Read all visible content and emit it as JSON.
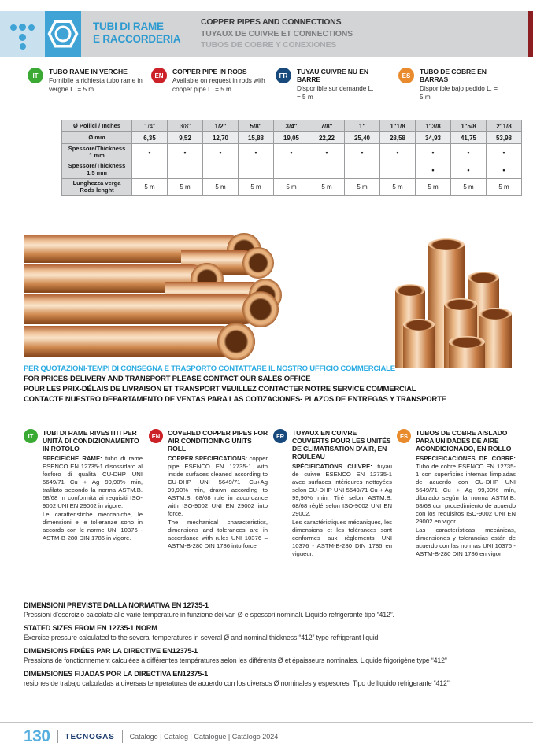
{
  "header": {
    "title_line1": "TUBI DI RAME",
    "title_line2": "E RACCORDERIA",
    "subtitle_en": "COPPER PIPES AND CONNECTIONS",
    "subtitle_fr": "TUYAUX DE CUIVRE ET CONNECTIONS",
    "subtitle_es": "TUBOS DE COBRE Y CONEXIONES",
    "accent_blue": "#3fa3d6",
    "section_tab_color": "#8c1d20"
  },
  "intro_notes": [
    {
      "lang": "IT",
      "color": "#3aaa35",
      "title": "TUBO RAME IN VERGHE",
      "text": "Fornibile a richiesta tubo rame in verghe L. = 5 m"
    },
    {
      "lang": "EN",
      "color": "#cc2128",
      "title": "COPPER PIPE IN RODS",
      "text": "Available on request in rods with copper pipe L. = 5 m"
    },
    {
      "lang": "FR",
      "color": "#17497d",
      "title": "TUYAU CUIVRE NU EN BARRE",
      "text": "Disponible sur demande L. = 5 m"
    },
    {
      "lang": "ES",
      "color": "#e98b2d",
      "title": "TUBO DE COBRE EN BARRAS",
      "text": "Disponible bajo pedido L. = 5 m"
    }
  ],
  "size_table": {
    "rows": [
      {
        "label": "Ø Pollici / Inches",
        "label2": "",
        "values": [
          "1/4\"",
          "3/8\"",
          "1/2\"",
          "5/8\"",
          "3/4\"",
          "7/8\"",
          "1\"",
          "1\"1/8",
          "1\"3/8",
          "1\"5/8",
          "2\"1/8"
        ]
      },
      {
        "label": "Ø mm",
        "label2": "",
        "values": [
          "6,35",
          "9,52",
          "12,70",
          "15,88",
          "19,05",
          "22,22",
          "25,40",
          "28,58",
          "34,93",
          "41,75",
          "53,98"
        ]
      },
      {
        "label": "Spessore/Thickness",
        "label2": "1 mm",
        "values": [
          "•",
          "•",
          "•",
          "•",
          "•",
          "•",
          "•",
          "•",
          "•",
          "•",
          "•"
        ]
      },
      {
        "label": "Spessore/Thickness",
        "label2": "1,5 mm",
        "values": [
          "",
          "",
          "",
          "",
          "",
          "",
          "",
          "",
          "•",
          "•",
          "•"
        ]
      },
      {
        "label": "Lunghezza verga",
        "label2": "Rods lenght",
        "values": [
          "5 m",
          "5 m",
          "5 m",
          "5 m",
          "5 m",
          "5 m",
          "5 m",
          "5 m",
          "5 m",
          "5 m",
          "5 m"
        ]
      }
    ]
  },
  "contact_lines": [
    "PER QUOTAZIONI-TEMPI DI CONSEGNA E TRASPORTO CONTATTARE IL NOSTRO UFFICIO COMMERCIALE",
    "FOR PRICES-DELIVERY AND TRANSPORT PLEASE CONTACT OUR SALES OFFICE",
    "POUR LES PRIX-DÉLAIS DE LIVRAISON ET TRANSPORT VEUILLEZ CONTACTER NOTRE SERVICE COMMERCIAL",
    "CONTACTE NUESTRO DEPARTAMENTO DE VENTAS PARA LAS COTIZACIONES- PLAZOS DE ENTREGAS Y TRANSPORTE"
  ],
  "spec_columns": [
    {
      "lang": "IT",
      "title": "TUBI DI RAME RIVESTITI PER UNITÀ DI CONDIZIONAMENTO IN ROTOLO",
      "lead": "SPECIFICHE RAME:",
      "body": "tubo di rame ESENCO EN 12735-1 disossidato al fosforo di qualità CU-DHP UNI 5649/71 Cu + Ag 99,90% min, trafilato secondo la norma ASTM.B. 68/68 in conformità ai requisiti ISO-9002 UNI EN 29002 in vigore.",
      "body2": "Le caratteristiche meccaniche, le dimensioni e le tolleranze sono in accordo con le norme UNI 10376 - ASTM-B-280 DIN 1786 in vigore."
    },
    {
      "lang": "EN",
      "title": "COVERED COPPER PIPES FOR AIR CONDITIONING UNITS ROLL",
      "lead": "COPPER SPECIFICATIONS:",
      "body": "copper pipe ESENCO EN 12735-1 with inside surfaces cleaned according to CU-DHP UNI 5649/71 Cu+Ag 99,90% min, drawn according to ASTM.B. 68/68 rule in accordance with ISO-9002 UNI EN 29002 into force.",
      "body2": "The mechanical characteristics, dimensions and tolerances are in accordance with rules UNI 10376 – ASTM-B-280 DIN 1786 into force"
    },
    {
      "lang": "FR",
      "title": "TUYAUX EN CUIVRE COUVERTS POUR LES UNITÉS DE CLIMATISATION D’AIR, EN ROULEAU",
      "lead": "SPÉCIFICATIONS CUIVRE:",
      "body": "tuyau de cuivre ESENCO EN 12735-1 avec surfaces intérieures nettoyées selon CU-DHP UNI 5649/71 Cu + Ag 99,90% min, Tiré selon ASTM.B. 68/68 réglé selon ISO-9002 UNI EN 29002.",
      "body2": "Les caractéristiques mécaniques, les dimensions et les tolérances sont conformes aux règlements UNI 10376 - ASTM-B-280 DIN 1786 en vigueur."
    },
    {
      "lang": "ES",
      "title": "TUBOS DE COBRE AISLADO PARA UNIDADES DE AIRE ACONDICIONADO, EN ROLLO",
      "lead": "ESPECIFICACIONES DE COBRE:",
      "body": "Tubo de cobre ESENCO EN 12735-1 con superficies internas limpiadas de acuerdo con CU-DHP UNI 5649/71 Cu + Ag 99,90% mín, dibujado según la norma ASTM.B. 68/68 con procedimiento de acuerdo con los requisitos ISO-9002 UNI EN 29002 en vigor.",
      "body2": "Las características mecánicas, dimensiones y tolerancias están de acuerdo con las normas UNI 10376 - ASTM-B-280 DIN 1786 en vigor"
    }
  ],
  "norm_notes": [
    {
      "title": "DIMENSIONI PREVISTE DALLA NORMATIVA EN 12735-1",
      "text": "Pressioni d’esercizio calcolate alle varie temperature in funzione dei vari Ø e spessori nominali. Liquido refrigerante tipo “412”."
    },
    {
      "title": "STATED SIZES FROM EN 12735-1 NORM",
      "text": "Exercise pressure calculated to the several temperatures in several Ø and nominal thickness “412” type refrigerant liquid"
    },
    {
      "title": "DIMENSIONS FIXÉES PAR LA DIRECTIVE EN12375-1",
      "text": "Pressions de fonctionnement calculées à différentes températures selon les différents Ø et épaisseurs nominales. Liquide frigorigène type “412”"
    },
    {
      "title": "DIMENSIONES FIJADAS POR LA DIRECTIVA EN12375-1",
      "text": "resiones de trabajo calculadas a diversas temperaturas de acuerdo con los diversos Ø nominales y espesores. Tipo de líquido refrigerante “412”"
    }
  ],
  "footer": {
    "page_number": "130",
    "brand": "TECNOGAS",
    "catalog": "Catalogo | Catalog | Catalogue | Catálogo 2024"
  }
}
